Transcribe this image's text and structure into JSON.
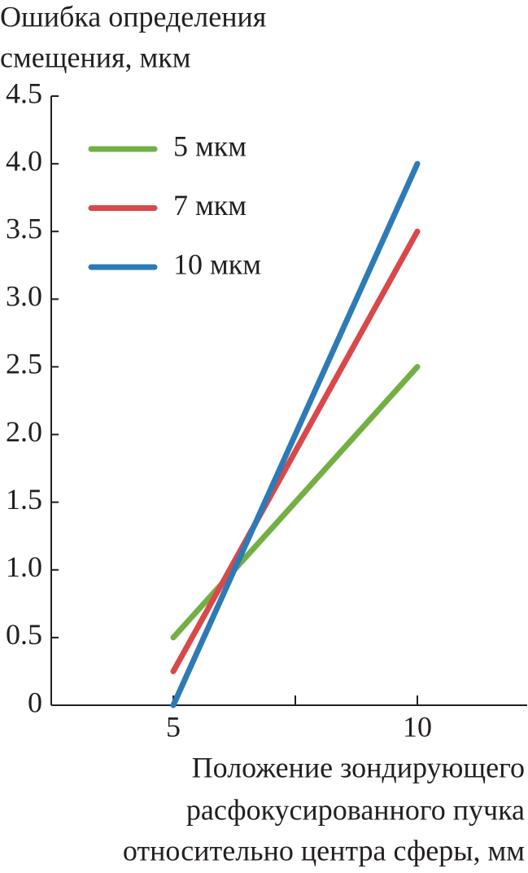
{
  "chart_data": {
    "type": "line",
    "ylabel": [
      "Ошибка определения",
      "смещения, мкм"
    ],
    "xlabel": [
      "Положение зондирующего",
      "расфокусированного пучка",
      "относительно центра сферы, мм"
    ],
    "x": [
      5,
      10
    ],
    "series": [
      {
        "name": "5 мкм",
        "color": "#72b043",
        "values": [
          0.5,
          2.5
        ]
      },
      {
        "name": "7 мкм",
        "color": "#d9484a",
        "values": [
          0.25,
          3.5
        ]
      },
      {
        "name": "10 мкм",
        "color": "#2d7bb6",
        "values": [
          0,
          4.0
        ]
      }
    ],
    "xlim": [
      2.5,
      12.25
    ],
    "xticks": [
      5,
      10
    ],
    "xminorticks": [
      7.5
    ],
    "ylim": [
      0,
      4.5
    ],
    "yticks": [
      0,
      0.5,
      {
        "value": 1,
        "label": "1.0"
      },
      1.5,
      {
        "value": 2,
        "label": "2.0"
      },
      2.5,
      {
        "value": 3,
        "label": "3.0"
      },
      3.5,
      {
        "value": 4,
        "label": "4.0"
      },
      4.5
    ],
    "legend": "upper left",
    "grid": false
  }
}
